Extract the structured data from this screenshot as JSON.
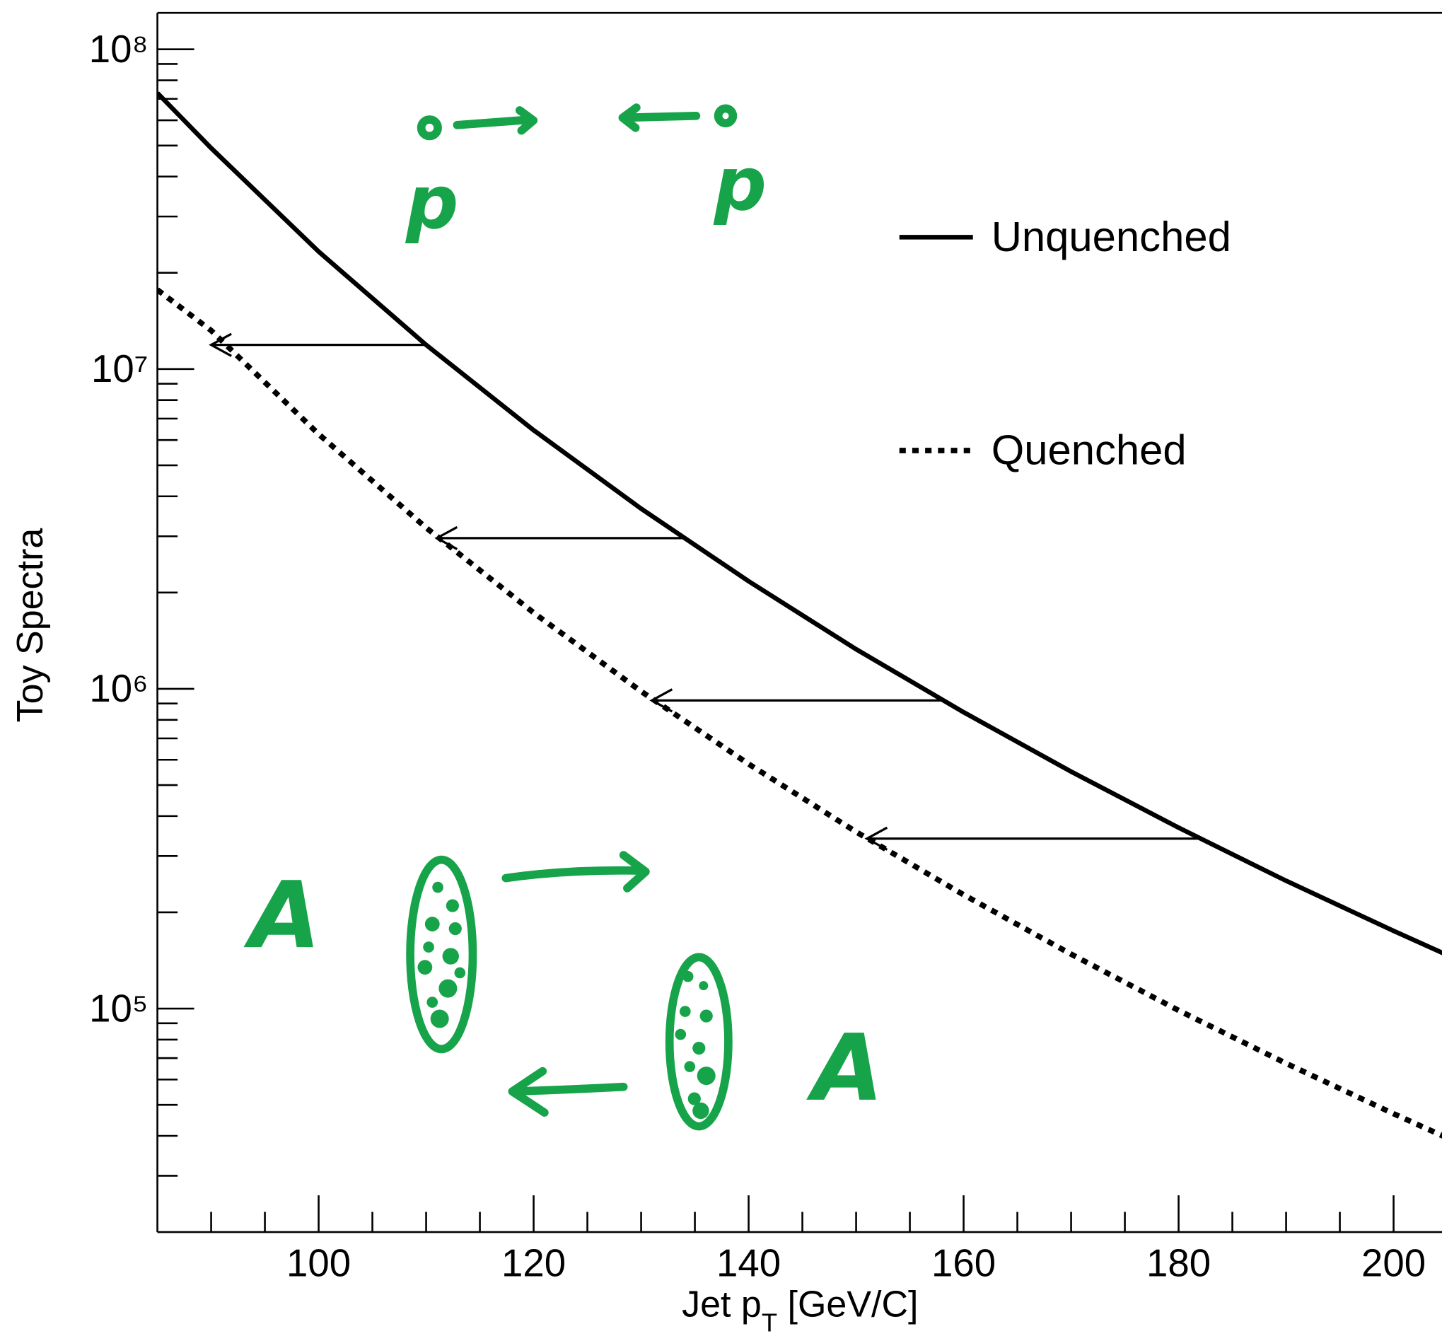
{
  "chart_data": {
    "type": "line",
    "xlabel": {
      "main": "Jet p",
      "sub": "T",
      "rest": " [GeV/C]"
    },
    "ylabel": "Toy Spectra",
    "log_y": true,
    "xlim": [
      85,
      205
    ],
    "ylim": [
      20000,
      130000000
    ],
    "xticks": [
      100,
      120,
      140,
      160,
      180,
      200
    ],
    "xminor_ticks": [
      90,
      95,
      105,
      110,
      115,
      125,
      130,
      135,
      145,
      150,
      155,
      165,
      170,
      175,
      185,
      190,
      195,
      205
    ],
    "yticks": [
      {
        "value": 100000,
        "label": "10⁵"
      },
      {
        "value": 1000000,
        "label": "10⁶"
      },
      {
        "value": 10000000,
        "label": "10⁷"
      },
      {
        "value": 100000000,
        "label": "10⁸"
      }
    ],
    "yminor_ticks": [
      30000,
      40000,
      50000,
      60000,
      70000,
      80000,
      90000,
      200000,
      300000,
      400000,
      500000,
      600000,
      700000,
      800000,
      900000,
      2000000,
      3000000,
      4000000,
      5000000,
      6000000,
      7000000,
      8000000,
      9000000,
      20000000,
      30000000,
      40000000,
      50000000,
      60000000,
      70000000,
      80000000,
      90000000
    ],
    "x": [
      85,
      90,
      100,
      110,
      120,
      130,
      140,
      150,
      160,
      170,
      180,
      190,
      200,
      205
    ],
    "series": [
      {
        "name": "Unquenched",
        "color": "#000000",
        "dash": "solid",
        "values": [
          73000000,
          49100000,
          23300000,
          11900000,
          6440000,
          3660000,
          2170000,
          1330000,
          845000,
          551000,
          368000,
          251000,
          175000,
          147000
        ]
      },
      {
        "name": "Quenched",
        "color": "#000000",
        "dash": "dotted",
        "values": [
          17700000,
          13200000,
          6260000,
          3190000,
          1730000,
          982000,
          582000,
          357000,
          227000,
          148000,
          98700,
          67400,
          46900,
          39400
        ]
      }
    ],
    "arrows": [
      {
        "x_from": 110,
        "x_to": 90,
        "y": 11900000
      },
      {
        "x_from": 134,
        "x_to": 111,
        "y": 2960000
      },
      {
        "x_from": 158,
        "x_to": 131,
        "y": 920000
      },
      {
        "x_from": 182,
        "x_to": 151,
        "y": 340000
      }
    ],
    "annotations": [
      "p",
      "p",
      "A",
      "A"
    ]
  }
}
